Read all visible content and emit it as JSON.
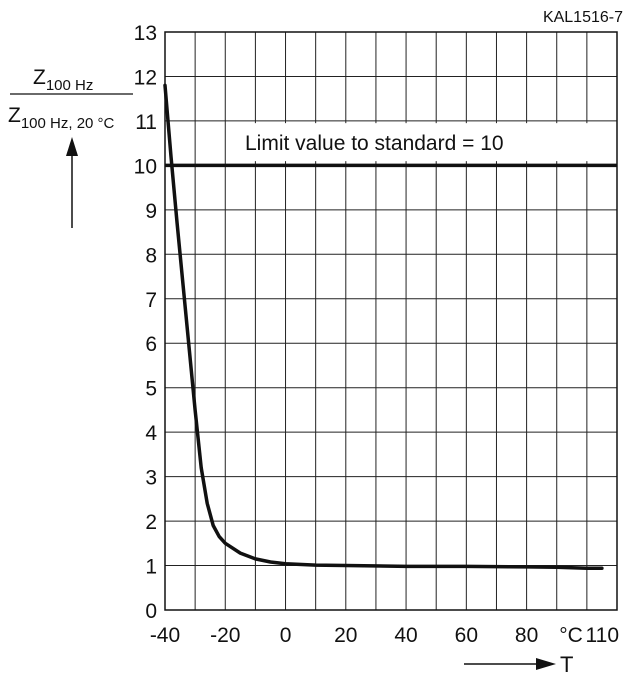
{
  "chart_data": {
    "type": "line",
    "figure_id": "KAL1516-7",
    "ylabel": {
      "numerator_base": "Z",
      "numerator_sub": "100 Hz",
      "denominator_base": "Z",
      "denominator_sub": "100 Hz, 20 °C"
    },
    "xlabel": "T",
    "x_unit_label": "°C",
    "xlim": [
      -40,
      110
    ],
    "ylim": [
      0,
      13
    ],
    "x_tick_labels": [
      "-40",
      "-20",
      "0",
      "20",
      "40",
      "60",
      "80",
      "110"
    ],
    "y_tick_labels": [
      "0",
      "1",
      "2",
      "3",
      "4",
      "5",
      "6",
      "7",
      "8",
      "9",
      "10",
      "11",
      "12",
      "13"
    ],
    "grid": true,
    "limit_line": {
      "y": 10,
      "label": "Limit value to standard = 10"
    },
    "series": [
      {
        "x": [
          -40,
          -38,
          -36,
          -34,
          -32,
          -30,
          -28,
          -26,
          -24,
          -22,
          -20,
          -15,
          -10,
          -5,
          0,
          10,
          20,
          40,
          60,
          80,
          90,
          100,
          105
        ],
        "y": [
          11.8,
          10.2,
          8.7,
          7.3,
          5.9,
          4.5,
          3.2,
          2.4,
          1.9,
          1.65,
          1.5,
          1.28,
          1.15,
          1.08,
          1.04,
          1.01,
          1.0,
          0.98,
          0.98,
          0.97,
          0.96,
          0.94,
          0.94
        ]
      }
    ]
  }
}
